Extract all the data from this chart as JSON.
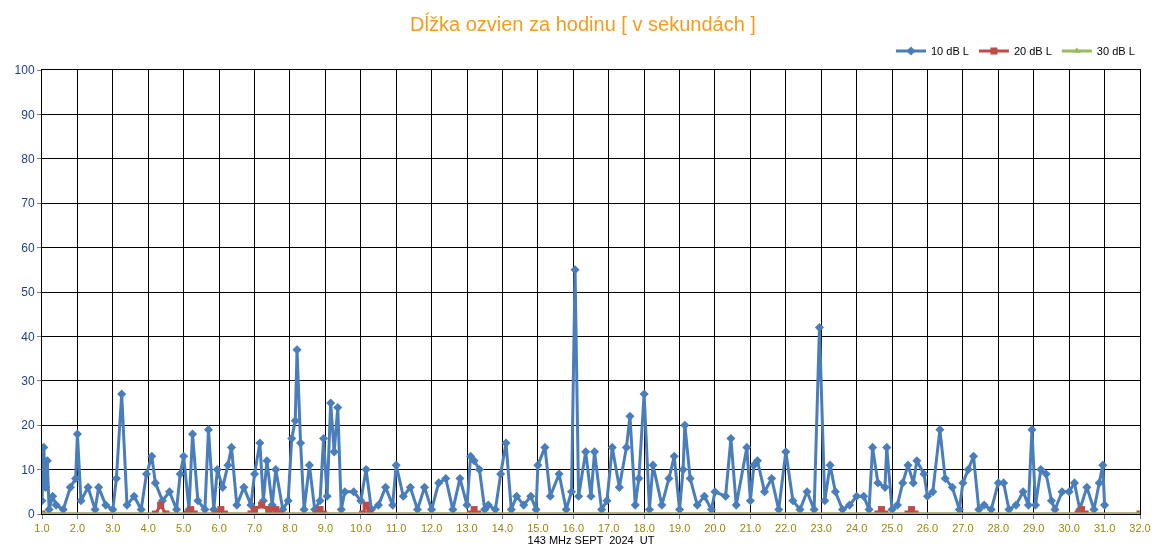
{
  "chart_data": {
    "type": "line",
    "title": "Dĺžka ozvien za hodinu [ v sekundách ]",
    "xlabel": "143 MHz SEPT  2024  UT",
    "xlim": [
      1,
      32
    ],
    "ylim": [
      0,
      100
    ],
    "xticks": [
      {
        "value": 1,
        "label": "1.0"
      },
      {
        "value": 2,
        "label": "2.0"
      },
      {
        "value": 3,
        "label": "3.0"
      },
      {
        "value": 4,
        "label": "4.0"
      },
      {
        "value": 5,
        "label": "5.0"
      },
      {
        "value": 6,
        "label": "6.0"
      },
      {
        "value": 7,
        "label": "7.0"
      },
      {
        "value": 8,
        "label": "8.0"
      },
      {
        "value": 9,
        "label": "9.0"
      },
      {
        "value": 10,
        "label": "10.0"
      },
      {
        "value": 11,
        "label": "11.0"
      },
      {
        "value": 12,
        "label": "12.0"
      },
      {
        "value": 13,
        "label": "13.0"
      },
      {
        "value": 14,
        "label": "14.0"
      },
      {
        "value": 15,
        "label": "15.0"
      },
      {
        "value": 16,
        "label": "16.0"
      },
      {
        "value": 17,
        "label": "17.0"
      },
      {
        "value": 18,
        "label": "18.0"
      },
      {
        "value": 19,
        "label": "19.0"
      },
      {
        "value": 20,
        "label": "20.0"
      },
      {
        "value": 21,
        "label": "21.0"
      },
      {
        "value": 22,
        "label": "22.0"
      },
      {
        "value": 23,
        "label": "23.0"
      },
      {
        "value": 24,
        "label": "24.0"
      },
      {
        "value": 25,
        "label": "25.0"
      },
      {
        "value": 26,
        "label": "26.0"
      },
      {
        "value": 27,
        "label": "27.0"
      },
      {
        "value": 28,
        "label": "28.0"
      },
      {
        "value": 29,
        "label": "29.0"
      },
      {
        "value": 30,
        "label": "30.0"
      },
      {
        "value": 31,
        "label": "31.0"
      },
      {
        "value": 32,
        "label": "32.0"
      }
    ],
    "yticks": [
      0,
      10,
      20,
      30,
      40,
      50,
      60,
      70,
      80,
      90,
      100
    ],
    "grid": true,
    "legend": "top right",
    "line_style": "solid",
    "series": [
      {
        "name": "10 dB L",
        "color": "#4a7ebb",
        "marker": "diamond",
        "x": [
          1.0,
          1.05,
          1.1,
          1.15,
          1.2,
          1.3,
          1.4,
          1.6,
          1.8,
          1.95,
          2.0,
          2.1,
          2.3,
          2.5,
          2.6,
          2.8,
          3.0,
          3.1,
          3.25,
          3.4,
          3.6,
          3.8,
          3.95,
          4.1,
          4.2,
          4.4,
          4.6,
          4.8,
          4.9,
          5.0,
          5.15,
          5.25,
          5.4,
          5.6,
          5.7,
          5.85,
          5.95,
          6.1,
          6.25,
          6.35,
          6.5,
          6.7,
          6.9,
          7.0,
          7.15,
          7.25,
          7.35,
          7.5,
          7.6,
          7.8,
          7.95,
          8.05,
          8.15,
          8.2,
          8.3,
          8.4,
          8.55,
          8.7,
          8.85,
          8.95,
          9.05,
          9.15,
          9.25,
          9.35,
          9.45,
          9.55,
          9.8,
          10.0,
          10.15,
          10.3,
          10.5,
          10.7,
          10.9,
          11.0,
          11.2,
          11.4,
          11.6,
          11.8,
          12.0,
          12.2,
          12.4,
          12.6,
          12.8,
          13.0,
          13.1,
          13.2,
          13.35,
          13.5,
          13.6,
          13.8,
          13.95,
          14.1,
          14.25,
          14.4,
          14.6,
          14.8,
          14.95,
          15.0,
          15.2,
          15.35,
          15.6,
          15.8,
          15.95,
          16.05,
          16.15,
          16.35,
          16.5,
          16.6,
          16.8,
          16.95,
          17.1,
          17.3,
          17.5,
          17.6,
          17.75,
          17.85,
          18.0,
          18.15,
          18.25,
          18.5,
          18.7,
          18.85,
          19.0,
          19.1,
          19.15,
          19.3,
          19.5,
          19.7,
          19.9,
          20.0,
          20.3,
          20.45,
          20.6,
          20.9,
          21.0,
          21.1,
          21.2,
          21.4,
          21.6,
          21.8,
          22.0,
          22.2,
          22.4,
          22.6,
          22.8,
          22.95,
          23.1,
          23.25,
          23.4,
          23.6,
          23.8,
          24.0,
          24.2,
          24.35,
          24.45,
          24.6,
          24.8,
          24.85,
          25.0,
          25.15,
          25.3,
          25.45,
          25.6,
          25.7,
          25.9,
          26.0,
          26.15,
          26.35,
          26.5,
          26.7,
          26.9,
          27.0,
          27.15,
          27.3,
          27.45,
          27.6,
          27.8,
          28.0,
          28.15,
          28.3,
          28.5,
          28.7,
          28.85,
          28.95,
          29.05,
          29.2,
          29.35,
          29.5,
          29.6,
          29.8,
          30.0,
          30.15,
          30.3,
          30.5,
          30.7,
          30.85,
          30.95,
          31.0
        ],
        "values": [
          3,
          15,
          6,
          12,
          1,
          4,
          2,
          1,
          6,
          8,
          18,
          3,
          6,
          1,
          6,
          2,
          1,
          8,
          27,
          2,
          4,
          1,
          9,
          13,
          7,
          3,
          5,
          1,
          9,
          13,
          1,
          18,
          3,
          1,
          19,
          1,
          10,
          6,
          11,
          15,
          2,
          6,
          2,
          9,
          16,
          3,
          12,
          2,
          10,
          1,
          3,
          17,
          21,
          37,
          16,
          1,
          11,
          1,
          3,
          17,
          4,
          25,
          14,
          24,
          1,
          5,
          5,
          3,
          10,
          1,
          2,
          6,
          2,
          11,
          4,
          6,
          1,
          6,
          1,
          7,
          8,
          1,
          8,
          2,
          13,
          12,
          10,
          1,
          2,
          1,
          9,
          16,
          1,
          4,
          2,
          4,
          1,
          11,
          15,
          4,
          9,
          1,
          5,
          55,
          4,
          14,
          4,
          14,
          1,
          3,
          15,
          6,
          15,
          22,
          2,
          8,
          27,
          1,
          11,
          2,
          8,
          13,
          1,
          10,
          20,
          8,
          2,
          4,
          1,
          5,
          4,
          17,
          2,
          15,
          3,
          11,
          12,
          5,
          8,
          1,
          14,
          3,
          1,
          5,
          1,
          42,
          3,
          11,
          5,
          1,
          2,
          4,
          4,
          1,
          15,
          7,
          6,
          15,
          1,
          2,
          7,
          11,
          7,
          12,
          9,
          4,
          5,
          19,
          8,
          6,
          1,
          7,
          10,
          13,
          1,
          2,
          1,
          7,
          7,
          1,
          2,
          5,
          2,
          19,
          2,
          10,
          9,
          3,
          1,
          5,
          5,
          7,
          1,
          6,
          1,
          7,
          11,
          2
        ]
      },
      {
        "name": "20 dB L",
        "color": "#be4b48",
        "marker": "square",
        "x": [
          1.0,
          4.2,
          4.35,
          4.5,
          5.1,
          5.2,
          5.3,
          5.95,
          6.05,
          6.15,
          6.9,
          7.0,
          7.2,
          7.4,
          7.6,
          7.7,
          8.75,
          8.85,
          8.95,
          10.05,
          10.15,
          10.25,
          13.1,
          13.2,
          13.3,
          24.6,
          24.7,
          24.8,
          25.45,
          25.55,
          25.65,
          30.25,
          30.35,
          30.45,
          32.0
        ],
        "values": [
          0,
          0,
          2,
          0,
          0,
          1,
          0,
          0,
          1,
          0,
          0,
          1,
          2,
          1,
          1,
          0,
          0,
          1,
          0,
          0,
          2,
          0,
          0,
          1,
          0,
          0,
          1,
          0,
          0,
          1,
          0,
          0,
          1,
          0,
          0
        ]
      },
      {
        "name": "30 dB L",
        "color": "#9bbb59",
        "marker": "triangle",
        "x": [
          1.0,
          32.0
        ],
        "values": [
          0,
          0
        ]
      }
    ]
  }
}
